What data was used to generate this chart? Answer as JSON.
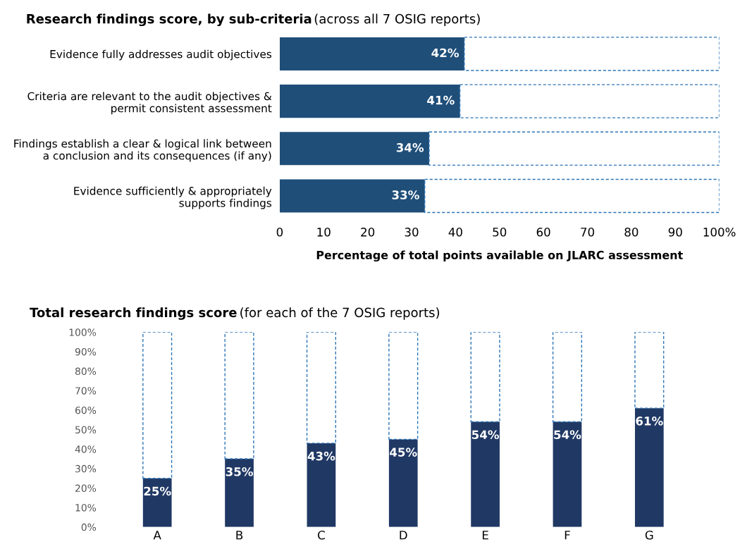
{
  "chart_data": [
    {
      "type": "bar",
      "orientation": "horizontal",
      "stacked": true,
      "title": "Research findings score, by sub-criteria",
      "subtitle": "(across all 7 OSIG reports)",
      "xlabel": "Percentage of total points available on JLARC assessment",
      "categories": [
        "Evidence fully addresses audit objectives",
        "Criteria are relevant to the audit objectives &\npermit consistent assessment",
        "Findings establish a clear & logical link between\na conclusion and its consequences (if any)",
        "Evidence sufficiently & appropriately\nsupports findings"
      ],
      "series": [
        {
          "color": "#1f4e79",
          "values": [
            42,
            41,
            34,
            33
          ],
          "value_labels": [
            "42%",
            "41%",
            "34%",
            "33%"
          ]
        },
        {
          "color": "#2e75b6",
          "line_style": "dashed",
          "values": [
            58,
            59,
            66,
            67
          ]
        }
      ],
      "xlim": [
        0,
        100
      ],
      "xticks": [
        0,
        10,
        20,
        30,
        40,
        50,
        60,
        70,
        80,
        90,
        {
          "value": 100,
          "label": "100%"
        }
      ],
      "grid": false
    },
    {
      "type": "bar",
      "stacked": true,
      "title": "Total research findings score",
      "subtitle": "(for each of the 7 OSIG reports)",
      "categories": [
        "A",
        "B",
        "C",
        "D",
        "E",
        "F",
        "G"
      ],
      "series": [
        {
          "color": "#203864",
          "values": [
            25,
            35,
            43,
            45,
            54,
            54,
            61
          ],
          "value_labels": [
            "25%",
            "35%",
            "43%",
            "45%",
            "54%",
            "54%",
            "61%"
          ]
        },
        {
          "color": "#2e75b6",
          "line_style": "dashed",
          "values": [
            75,
            65,
            57,
            55,
            46,
            46,
            39
          ]
        }
      ],
      "ylim": [
        0,
        100
      ],
      "yticks": [
        {
          "value": 0,
          "label": "0%"
        },
        {
          "value": 10,
          "label": "10%"
        },
        {
          "value": 20,
          "label": "20%"
        },
        {
          "value": 30,
          "label": "30%"
        },
        {
          "value": 40,
          "label": "40%"
        },
        {
          "value": 50,
          "label": "50%"
        },
        {
          "value": 60,
          "label": "60%"
        },
        {
          "value": 70,
          "label": "70%"
        },
        {
          "value": 80,
          "label": "80%"
        },
        {
          "value": 90,
          "label": "90%"
        },
        {
          "value": 100,
          "label": "100%"
        }
      ],
      "grid": false
    }
  ]
}
